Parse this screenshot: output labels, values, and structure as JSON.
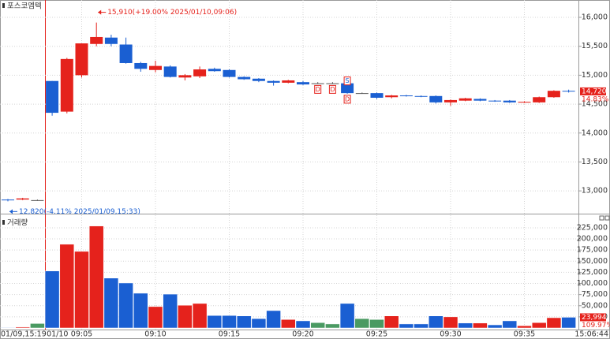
{
  "chart_data": [
    {
      "type": "candlestick",
      "title": "포스코엠텍",
      "categories": [
        "01/09,15:19",
        null,
        null,
        "01/10",
        null,
        "09:05",
        null,
        null,
        null,
        null,
        "09:10",
        null,
        null,
        null,
        null,
        "09:15",
        null,
        null,
        null,
        null,
        "09:20",
        null,
        null,
        null,
        null,
        "09:25",
        null,
        null,
        null,
        null,
        "09:30",
        null,
        null,
        null,
        null,
        "09:35",
        null,
        null,
        null
      ],
      "open": [
        12850,
        12850,
        12840,
        14900,
        14370,
        15000,
        15540,
        15650,
        15530,
        15210,
        15090,
        15150,
        14960,
        14980,
        15110,
        15090,
        14970,
        14940,
        14900,
        14870,
        14880,
        14860,
        14860,
        14860,
        14690,
        14690,
        14620,
        14650,
        14640,
        14640,
        14530,
        14560,
        14590,
        14560,
        14560,
        14530,
        14530,
        14620,
        14730
      ],
      "high": [
        12860,
        12880,
        12850,
        14900,
        15300,
        15550,
        15910,
        15700,
        15650,
        15230,
        15250,
        15170,
        15020,
        15150,
        15130,
        15100,
        14980,
        14950,
        14910,
        14920,
        14900,
        14880,
        14880,
        14880,
        14700,
        14700,
        14660,
        14660,
        14650,
        14650,
        14580,
        14610,
        14600,
        14570,
        14570,
        14550,
        14630,
        14740,
        14750
      ],
      "low": [
        12820,
        12840,
        12830,
        14300,
        14340,
        14960,
        15500,
        15500,
        15200,
        15060,
        15050,
        14960,
        14910,
        14950,
        15060,
        14960,
        14920,
        14880,
        14820,
        14860,
        14830,
        14850,
        14850,
        14680,
        14680,
        14590,
        14600,
        14630,
        14620,
        14510,
        14470,
        14550,
        14550,
        14540,
        14520,
        14520,
        14520,
        14610,
        14700
      ],
      "close": [
        12840,
        12870,
        12840,
        14350,
        15280,
        15550,
        15660,
        15540,
        15210,
        15110,
        15160,
        14970,
        15000,
        15100,
        15070,
        14970,
        14930,
        14900,
        14870,
        14910,
        14840,
        14860,
        14860,
        14690,
        14690,
        14610,
        14650,
        14640,
        14630,
        14530,
        14570,
        14600,
        14560,
        14550,
        14530,
        14540,
        14620,
        14730,
        14720
      ],
      "up_color": "#e5221c",
      "down_color": "#1a5fd2",
      "flat_color": "#555555",
      "signals": [
        null,
        null,
        null,
        null,
        null,
        null,
        null,
        null,
        null,
        null,
        null,
        null,
        null,
        null,
        null,
        null,
        null,
        null,
        null,
        null,
        null,
        "D",
        "D",
        [
          "S",
          "D"
        ],
        null,
        null,
        null,
        null,
        null,
        null,
        null,
        null,
        null,
        null,
        null,
        null,
        null,
        null,
        null
      ],
      "annotations": [
        {
          "value": 15910,
          "label": "15,910(+19.00% 2025/01/10,09:06)"
        },
        {
          "value": 12820,
          "label": "12,820(-4.11% 2025/01/09,15:33)"
        }
      ],
      "last_price": {
        "value": 14720,
        "label": "14,720"
      },
      "last_change": "14.83%",
      "x_end_label": "15:06:44",
      "ylim": [
        12620,
        16300
      ],
      "yticks": [
        {
          "value": 13000,
          "label": "13,000"
        },
        {
          "value": 13500,
          "label": "13,500"
        },
        {
          "value": 14000,
          "label": "14,000"
        },
        {
          "value": 14500,
          "label": "14,500"
        },
        {
          "value": 15000,
          "label": "15,000"
        },
        {
          "value": 15500,
          "label": "15,500"
        },
        {
          "value": 16000,
          "label": "16,000"
        }
      ],
      "grid": true
    },
    {
      "type": "bar",
      "title": "거래량",
      "values": [
        1000,
        2000,
        10000,
        128000,
        188000,
        172000,
        229000,
        112000,
        101000,
        78000,
        48000,
        76000,
        51000,
        55000,
        28000,
        28000,
        27000,
        21000,
        39000,
        19000,
        16000,
        12000,
        9000,
        55000,
        21000,
        19000,
        27000,
        9000,
        9000,
        27000,
        25000,
        11000,
        11000,
        7000,
        16000,
        5000,
        12000,
        23000,
        23994
      ],
      "colors": [
        "#1a5fd2",
        "#e5221c",
        "#4a9a62",
        "#1a5fd2",
        "#e5221c",
        "#e5221c",
        "#e5221c",
        "#1a5fd2",
        "#1a5fd2",
        "#1a5fd2",
        "#e5221c",
        "#1a5fd2",
        "#e5221c",
        "#e5221c",
        "#1a5fd2",
        "#1a5fd2",
        "#1a5fd2",
        "#1a5fd2",
        "#1a5fd2",
        "#e5221c",
        "#1a5fd2",
        "#4a9a62",
        "#4a9a62",
        "#1a5fd2",
        "#4a9a62",
        "#4a9a62",
        "#e5221c",
        "#1a5fd2",
        "#1a5fd2",
        "#1a5fd2",
        "#e5221c",
        "#1a5fd2",
        "#e5221c",
        "#1a5fd2",
        "#1a5fd2",
        "#e5221c",
        "#e5221c",
        "#e5221c",
        "#1a5fd2"
      ],
      "last_volume": {
        "value": 23994,
        "label": "23,994"
      },
      "last_ratio": "109.97%",
      "ylim": [
        0,
        255000
      ],
      "yticks": [
        {
          "value": 25000,
          "label": "25,000"
        },
        {
          "value": 50000,
          "label": "50,000"
        },
        {
          "value": 75000,
          "label": "75,000"
        },
        {
          "value": 100000,
          "label": "100,000"
        },
        {
          "value": 125000,
          "label": "125,000"
        },
        {
          "value": 150000,
          "label": "150,000"
        },
        {
          "value": 175000,
          "label": "175,000"
        },
        {
          "value": 200000,
          "label": "200,000"
        },
        {
          "value": 225000,
          "label": "225,000"
        }
      ],
      "grid": true
    }
  ]
}
